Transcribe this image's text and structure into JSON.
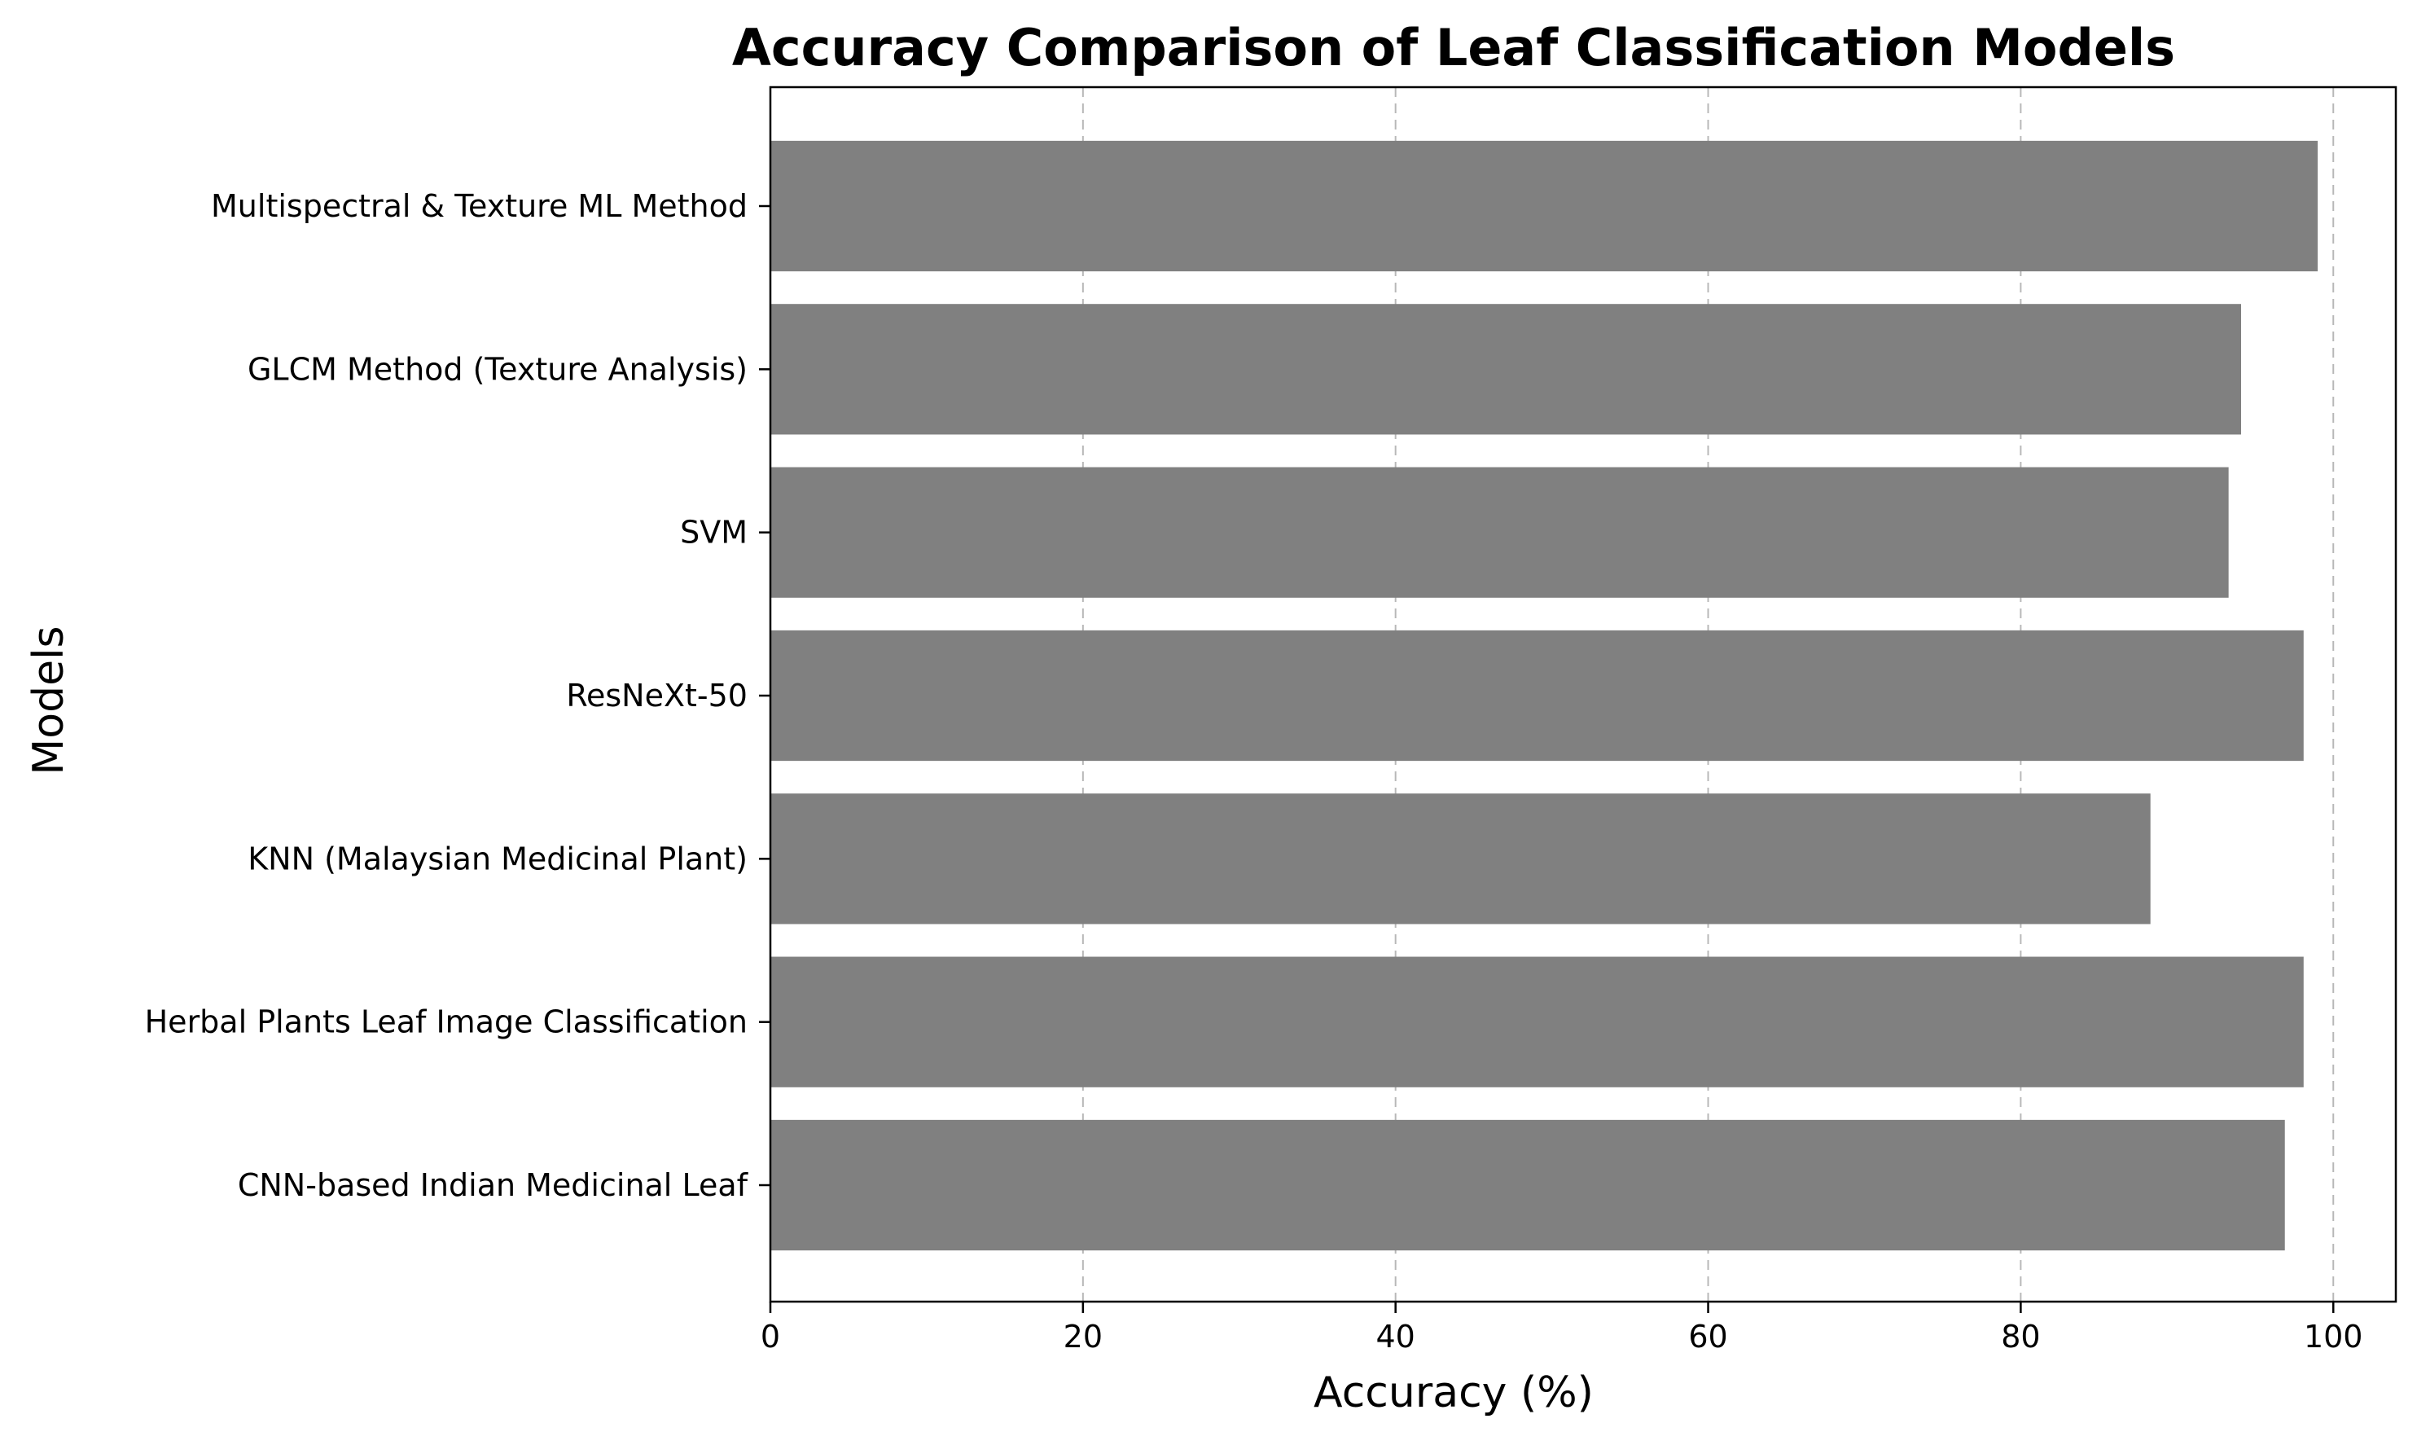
{
  "chart_data": {
    "type": "bar",
    "orientation": "horizontal",
    "title": "Accuracy Comparison of Leaf Classification Models",
    "xlabel": "Accuracy (%)",
    "ylabel": "Models",
    "xlim": [
      0,
      104
    ],
    "xticks": [
      0,
      20,
      40,
      60,
      80,
      100
    ],
    "grid": "x-dashed",
    "bar_color": "#808080",
    "categories": [
      "CNN-based Indian Medicinal Leaf",
      "Herbal Plants Leaf Image Classification",
      "KNN (Malaysian Medicinal Plant)",
      "ResNeXt-50",
      "SVM",
      "GLCM Method (Texture Analysis)",
      "Multispectral & Texture ML Method"
    ],
    "values": [
      96.9,
      98.1,
      88.3,
      98.1,
      93.3,
      94.1,
      99.0
    ]
  }
}
